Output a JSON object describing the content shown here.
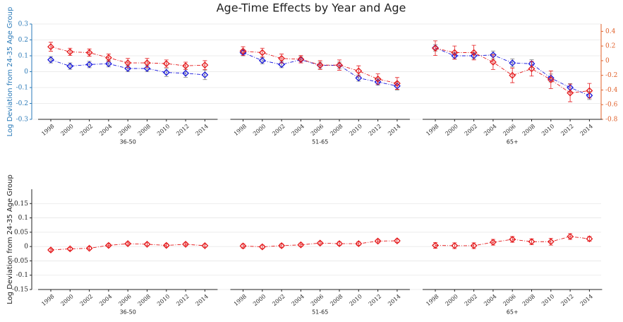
{
  "chart_data": [
    {
      "type": "line",
      "title": "Age-Time Effects by Year and Age",
      "ylabel": "Log Deviation from 24-35 Age Group",
      "y_axis_color": "#2a7ab8",
      "y2_axis_color": "#e0602a",
      "ylim": [
        -0.3,
        0.3
      ],
      "yticks": [
        -0.3,
        -0.2,
        -0.1,
        0,
        0.1,
        0.2,
        0.3
      ],
      "y2lim": [
        -0.8,
        0.5
      ],
      "y2ticks": [
        -0.8,
        -0.6,
        -0.4,
        -0.2,
        0,
        0.2,
        0.4
      ],
      "grid": true,
      "categories": [
        1998,
        2000,
        2002,
        2004,
        2006,
        2008,
        2010,
        2012,
        2014
      ],
      "groups": [
        {
          "label": "36-50",
          "series": [
            {
              "color": "#1a1adc",
              "error_color": "#777777",
              "axis": "y",
              "values": [
                0.075,
                0.035,
                0.045,
                0.05,
                0.02,
                0.02,
                -0.005,
                -0.01,
                -0.02
              ],
              "errors": [
                0.02,
                0.02,
                0.02,
                0.02,
                0.02,
                0.02,
                0.025,
                0.025,
                0.03
              ]
            },
            {
              "color": "#e41a1c",
              "error_color": "#e41a1c",
              "axis": "y2",
              "values": [
                0.19,
                0.12,
                0.11,
                0.04,
                -0.03,
                -0.03,
                -0.04,
                -0.07,
                -0.06
              ],
              "errors": [
                0.06,
                0.05,
                0.05,
                0.05,
                0.06,
                0.06,
                0.05,
                0.05,
                0.06
              ]
            }
          ]
        },
        {
          "label": "51-65",
          "series": [
            {
              "color": "#1a1adc",
              "error_color": "#777777",
              "axis": "y",
              "values": [
                0.12,
                0.07,
                0.045,
                0.075,
                0.04,
                0.04,
                -0.04,
                -0.065,
                -0.09
              ],
              "errors": [
                0.02,
                0.02,
                0.02,
                0.02,
                0.02,
                0.02,
                0.02,
                0.02,
                0.025
              ]
            },
            {
              "color": "#e41a1c",
              "error_color": "#e41a1c",
              "axis": "y2",
              "values": [
                0.13,
                0.11,
                0.03,
                0.02,
                -0.06,
                -0.06,
                -0.14,
                -0.25,
                -0.31
              ],
              "errors": [
                0.06,
                0.06,
                0.06,
                0.05,
                0.06,
                0.07,
                0.07,
                0.07,
                0.08
              ]
            }
          ]
        },
        {
          "label": "65+",
          "series": [
            {
              "color": "#1a1adc",
              "error_color": "#777777",
              "axis": "y",
              "values": [
                0.15,
                0.1,
                0.1,
                0.105,
                0.055,
                0.05,
                -0.04,
                -0.1,
                -0.15
              ],
              "errors": [
                0.02,
                0.02,
                0.02,
                0.025,
                0.025,
                0.025,
                0.025,
                0.025,
                0.025
              ]
            },
            {
              "color": "#e41a1c",
              "error_color": "#e41a1c",
              "axis": "y2",
              "values": [
                0.17,
                0.11,
                0.11,
                -0.02,
                -0.2,
                -0.11,
                -0.26,
                -0.44,
                -0.41
              ],
              "errors": [
                0.1,
                0.09,
                0.1,
                0.1,
                0.1,
                0.1,
                0.12,
                0.12,
                0.1
              ]
            }
          ]
        }
      ]
    },
    {
      "type": "line",
      "ylabel": "Log Deviation from 24-35 Age Group",
      "ylim": [
        -0.15,
        0.2
      ],
      "yticks": [
        -0.15,
        -0.1,
        -0.05,
        0,
        0.05,
        0.1,
        0.15
      ],
      "grid": true,
      "categories": [
        1998,
        2000,
        2002,
        2004,
        2006,
        2008,
        2010,
        2012,
        2014
      ],
      "groups": [
        {
          "label": "36-50",
          "series": [
            {
              "color": "#e41a1c",
              "error_color": "#e41a1c",
              "axis": "y",
              "values": [
                -0.012,
                -0.008,
                -0.006,
                0.004,
                0.01,
                0.008,
                0.004,
                0.008,
                0.003
              ],
              "errors": [
                0.005,
                0.005,
                0.005,
                0.005,
                0.005,
                0.005,
                0.005,
                0.005,
                0.005
              ]
            }
          ]
        },
        {
          "label": "51-65",
          "series": [
            {
              "color": "#e41a1c",
              "error_color": "#e41a1c",
              "axis": "y",
              "values": [
                0.002,
                -0.001,
                0.003,
                0.006,
                0.012,
                0.01,
                0.01,
                0.019,
                0.02
              ],
              "errors": [
                0.007,
                0.006,
                0.006,
                0.006,
                0.006,
                0.006,
                0.006,
                0.006,
                0.006
              ]
            }
          ]
        },
        {
          "label": "65+",
          "series": [
            {
              "color": "#e41a1c",
              "error_color": "#e41a1c",
              "axis": "y",
              "values": [
                0.004,
                0.003,
                0.003,
                0.015,
                0.025,
                0.017,
                0.017,
                0.035,
                0.027
              ],
              "errors": [
                0.01,
                0.01,
                0.01,
                0.01,
                0.01,
                0.01,
                0.012,
                0.01,
                0.008
              ]
            }
          ]
        }
      ]
    }
  ]
}
